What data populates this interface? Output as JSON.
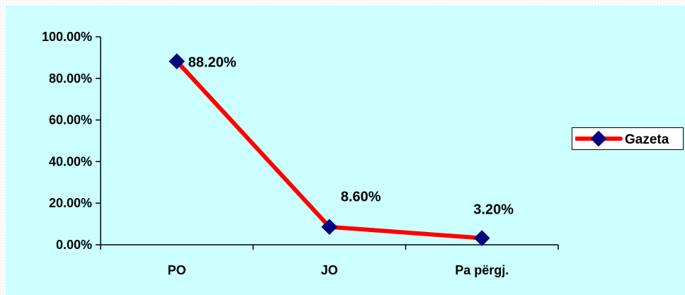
{
  "chart_data": {
    "type": "line",
    "categories": [
      "PO",
      "JO",
      "Pa përgj."
    ],
    "series": [
      {
        "name": "Gazeta",
        "values": [
          88.2,
          8.6,
          3.2
        ],
        "labels": [
          "88.20%",
          "8.60%",
          "3.20%"
        ],
        "line_color": "#ff0000",
        "marker_color": "#000080"
      }
    ],
    "yticks": [
      "0.00%",
      "20.00%",
      "40.00%",
      "60.00%",
      "80.00%",
      "100.00%"
    ],
    "ylim": [
      0,
      100
    ],
    "grid": false,
    "legend": "right"
  },
  "colors": {
    "plot_background": "#ccffff",
    "axis": "#000000"
  }
}
